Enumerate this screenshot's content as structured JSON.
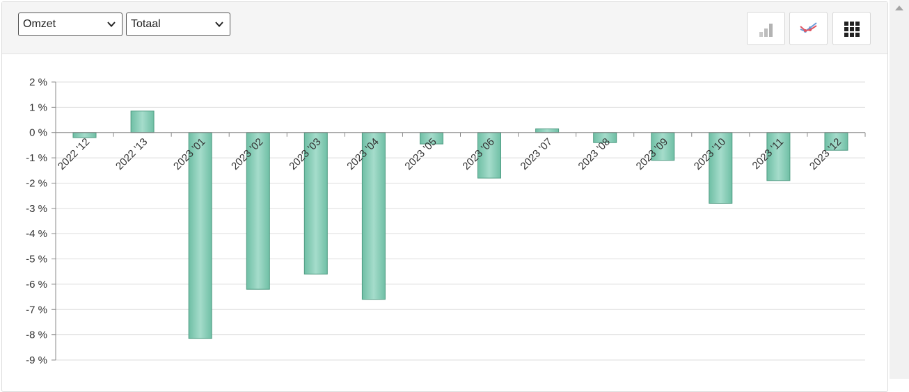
{
  "toolbar": {
    "metric_select": {
      "value": "Omzet"
    },
    "scope_select": {
      "value": "Totaal"
    },
    "buttons": [
      {
        "name": "bar-chart-button",
        "icon": "bar-chart-icon"
      },
      {
        "name": "line-chart-button",
        "icon": "line-chart-icon"
      },
      {
        "name": "grid-view-button",
        "icon": "grid-icon"
      }
    ]
  },
  "colors": {
    "bar_fill": "#86cbb5",
    "bar_stroke": "#4f9b82",
    "grid": "#dddddd",
    "axis": "#888888"
  },
  "chart_data": {
    "type": "bar",
    "title": "",
    "xlabel": "",
    "ylabel": "",
    "categories": [
      "2022 '12",
      "2022 '13",
      "2023 '01",
      "2023 '02",
      "2023 '03",
      "2023 '04",
      "2023 '05",
      "2023 '06",
      "2023 '07",
      "2023 '08",
      "2023 '09",
      "2023 '10",
      "2023 '11",
      "2023 '12"
    ],
    "values": [
      -0.2,
      0.85,
      -8.15,
      -6.2,
      -5.6,
      -6.6,
      -0.45,
      -1.8,
      0.15,
      -0.4,
      -1.1,
      -2.8,
      -1.9,
      -0.7
    ],
    "ylim": [
      -9,
      2
    ],
    "yticks": [
      2,
      1,
      0,
      -1,
      -2,
      -3,
      -4,
      -5,
      -6,
      -7,
      -8,
      -9
    ],
    "tick_suffix": " %",
    "grid": true,
    "legend": "none"
  }
}
